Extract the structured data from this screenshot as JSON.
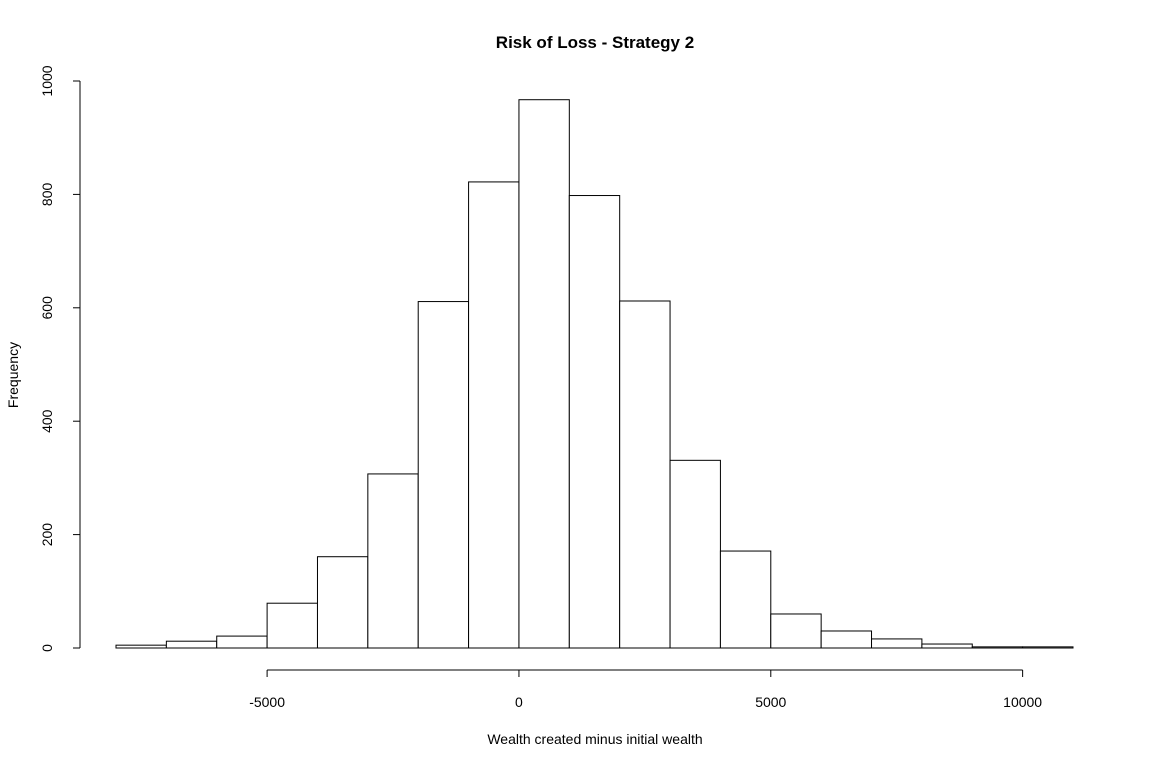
{
  "chart_data": {
    "type": "histogram",
    "title": "Risk of Loss - Strategy 2",
    "xlabel": "Wealth created minus initial wealth",
    "ylabel": "Frequency",
    "bin_edges": [
      -8000,
      -7000,
      -6000,
      -5000,
      -4000,
      -3000,
      -2000,
      -1000,
      0,
      1000,
      2000,
      3000,
      4000,
      5000,
      6000,
      7000,
      8000,
      9000,
      10000,
      11000
    ],
    "counts": [
      5,
      12,
      21,
      79,
      161,
      307,
      611,
      822,
      967,
      798,
      612,
      331,
      171,
      60,
      30,
      16,
      7,
      2,
      2
    ],
    "x_ticks": [
      -5000,
      0,
      5000,
      10000
    ],
    "x_tick_labels": [
      "-5000",
      "0",
      "5000",
      "10000"
    ],
    "y_ticks": [
      0,
      200,
      400,
      600,
      800,
      1000
    ],
    "y_tick_labels": [
      "0",
      "200",
      "400",
      "600",
      "800",
      "1000"
    ],
    "xlim": [
      -8000,
      11000
    ],
    "ylim": [
      0,
      1000
    ],
    "grid": false,
    "colors": {
      "bar_fill": "#ffffff",
      "bar_stroke": "#000000"
    }
  }
}
